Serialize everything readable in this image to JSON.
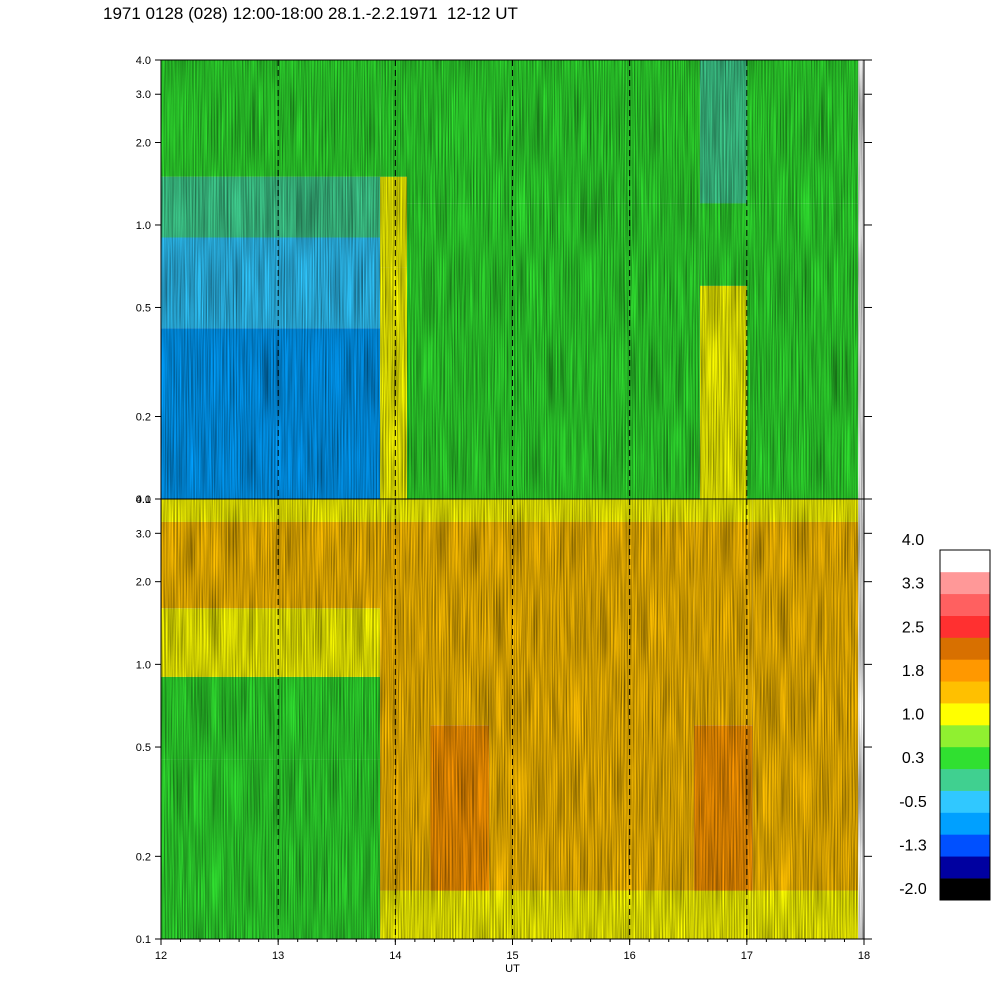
{
  "title": "1971 0128 (028) 12:00-18:00 28.1.-2.2.1971  12-12 UT",
  "chart_data": [
    {
      "type": "heatmap",
      "panel": "upper",
      "x_range": [
        12,
        18
      ],
      "y_range": [
        0.1,
        4.0
      ],
      "y_scale": "log",
      "y_ticks": [
        "0.1",
        "0.2",
        "0.5",
        "1.0",
        "2.0",
        "3.0",
        "4.0"
      ],
      "x_gridlines": [
        13,
        14,
        15,
        16,
        17
      ],
      "segments": [
        {
          "x_range": [
            12.0,
            13.87
          ],
          "bands": [
            {
              "y_range": [
                0.1,
                0.42
              ],
              "level": -0.6
            },
            {
              "y_range": [
                0.42,
                0.9
              ],
              "level": -0.2
            },
            {
              "y_range": [
                0.9,
                1.5
              ],
              "level": 0.2
            },
            {
              "y_range": [
                1.5,
                4.0
              ],
              "level": 0.5
            }
          ]
        },
        {
          "x_range": [
            13.87,
            14.1
          ],
          "bands": [
            {
              "y_range": [
                0.1,
                0.7
              ],
              "level": 1.0
            },
            {
              "y_range": [
                0.7,
                1.5
              ],
              "level": 1.3
            },
            {
              "y_range": [
                1.5,
                4.0
              ],
              "level": 0.6
            }
          ]
        },
        {
          "x_range": [
            14.1,
            16.6
          ],
          "bands": [
            {
              "y_range": [
                0.1,
                0.5
              ],
              "level": 0.6
            },
            {
              "y_range": [
                0.5,
                1.2
              ],
              "level": 0.5
            },
            {
              "y_range": [
                1.2,
                4.0
              ],
              "level": 0.3
            }
          ]
        },
        {
          "x_range": [
            16.6,
            17.0
          ],
          "bands": [
            {
              "y_range": [
                0.1,
                0.6
              ],
              "level": 1.0
            },
            {
              "y_range": [
                0.6,
                1.2
              ],
              "level": 0.6
            },
            {
              "y_range": [
                1.2,
                4.0
              ],
              "level": 0.2
            }
          ]
        },
        {
          "x_range": [
            17.0,
            17.95
          ],
          "bands": [
            {
              "y_range": [
                0.1,
                0.5
              ],
              "level": 0.5
            },
            {
              "y_range": [
                0.5,
                1.2
              ],
              "level": 0.6
            },
            {
              "y_range": [
                1.2,
                4.0
              ],
              "level": 0.3
            }
          ]
        }
      ]
    },
    {
      "type": "heatmap",
      "panel": "lower",
      "x_range": [
        12,
        18
      ],
      "y_range": [
        0.1,
        4.0
      ],
      "y_scale": "log",
      "y_ticks": [
        "0.1",
        "0.2",
        "0.5",
        "1.0",
        "2.0",
        "3.0",
        "4.0"
      ],
      "x_ticks": [
        "12",
        "13",
        "14",
        "15",
        "16",
        "17",
        "18"
      ],
      "x_label": "UT",
      "x_gridlines": [
        13,
        14,
        15,
        16,
        17
      ],
      "segments": [
        {
          "x_range": [
            12.0,
            13.87
          ],
          "bands": [
            {
              "y_range": [
                0.1,
                0.45
              ],
              "level": 0.3
            },
            {
              "y_range": [
                0.45,
                0.9
              ],
              "level": 0.6
            },
            {
              "y_range": [
                0.9,
                1.6
              ],
              "level": 1.0
            },
            {
              "y_range": [
                1.6,
                3.3
              ],
              "level": 1.5
            },
            {
              "y_range": [
                3.3,
                4.0
              ],
              "level": 1.0
            }
          ]
        },
        {
          "x_range": [
            13.87,
            14.3
          ],
          "bands": [
            {
              "y_range": [
                0.1,
                0.15
              ],
              "level": 1.1
            },
            {
              "y_range": [
                0.15,
                3.3
              ],
              "level": 1.7
            },
            {
              "y_range": [
                3.3,
                4.0
              ],
              "level": 1.0
            }
          ]
        },
        {
          "x_range": [
            14.3,
            14.8
          ],
          "bands": [
            {
              "y_range": [
                0.1,
                0.15
              ],
              "level": 1.2
            },
            {
              "y_range": [
                0.15,
                0.6
              ],
              "level": 2.0
            },
            {
              "y_range": [
                0.6,
                3.3
              ],
              "level": 1.7
            },
            {
              "y_range": [
                3.3,
                4.0
              ],
              "level": 1.0
            }
          ]
        },
        {
          "x_range": [
            14.8,
            16.55
          ],
          "bands": [
            {
              "y_range": [
                0.1,
                0.15
              ],
              "level": 1.2
            },
            {
              "y_range": [
                0.15,
                3.3
              ],
              "level": 1.6
            },
            {
              "y_range": [
                3.3,
                4.0
              ],
              "level": 1.0
            }
          ]
        },
        {
          "x_range": [
            16.55,
            17.05
          ],
          "bands": [
            {
              "y_range": [
                0.1,
                0.15
              ],
              "level": 1.2
            },
            {
              "y_range": [
                0.15,
                0.6
              ],
              "level": 2.0
            },
            {
              "y_range": [
                0.6,
                3.3
              ],
              "level": 1.7
            },
            {
              "y_range": [
                3.3,
                4.0
              ],
              "level": 1.0
            }
          ]
        },
        {
          "x_range": [
            17.05,
            17.95
          ],
          "bands": [
            {
              "y_range": [
                0.1,
                0.15
              ],
              "level": 1.2
            },
            {
              "y_range": [
                0.15,
                3.3
              ],
              "level": 1.5
            },
            {
              "y_range": [
                3.3,
                4.0
              ],
              "level": 1.0
            }
          ]
        }
      ]
    }
  ],
  "colorbar": {
    "labels": [
      "4.0",
      "3.3",
      "2.5",
      "1.8",
      "1.0",
      "0.3",
      "-0.5",
      "-1.3",
      "-2.0"
    ],
    "range": [
      -2.0,
      4.0
    ],
    "colors": [
      "#000000",
      "#0000a0",
      "#0050ff",
      "#00a0ff",
      "#30c8ff",
      "#40d090",
      "#30e030",
      "#90f030",
      "#ffff00",
      "#ffc000",
      "#ff9800",
      "#d87000",
      "#ff3030",
      "#ff6060",
      "#ff9898",
      "#ffffff"
    ]
  }
}
